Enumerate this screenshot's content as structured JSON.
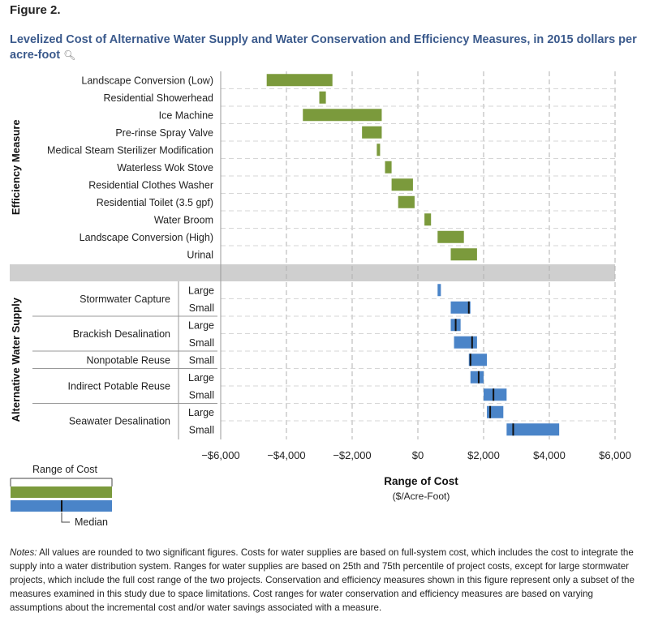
{
  "figure_label": "Figure 2.",
  "figure_title": "Levelized Cost of Alternative Water Supply and Water Conservation and Efficiency Measures, in 2015 dollars per acre-foot",
  "notes_label": "Notes:",
  "notes_text": "All values are rounded to two significant figures. Costs for water supplies are based on full-system cost, which includes the cost to integrate the supply into a water distribution system. Ranges for water supplies are based on 25th and 75th percentile of project costs, except for large stormwater projects, which include the full cost range of the two projects. Conservation and efficiency measures shown in this figure represent only a subset of the measures examined in this study due to space limitations. Cost ranges for water conservation and efficiency measures are based on varying assumptions about the incremental cost and/or water savings associated with a measure.",
  "legend": {
    "title": "Range of Cost",
    "median_label": "Median"
  },
  "colors": {
    "efficiency": "#7b9a3c",
    "supply": "#4a84c8",
    "median": "#111111",
    "separator": "#cfcfcf",
    "grid": "#b0b0b0",
    "title": "#3b5a8c"
  },
  "chart_data": {
    "type": "bar",
    "orientation": "horizontal floating range",
    "xlabel": "Range of Cost",
    "xlabel_units": "($/Acre-Foot)",
    "xlim": [
      -6000,
      6000
    ],
    "xticks": [
      -6000,
      -4000,
      -2000,
      0,
      2000,
      4000,
      6000
    ],
    "xtick_labels": [
      "−$6,000",
      "−$4,000",
      "−$2,000",
      "$0",
      "$2,000",
      "$4,000",
      "$6,000"
    ],
    "grid": "vertical dashed",
    "groups": [
      {
        "name": "Efficiency Measure",
        "color_key": "efficiency",
        "rows": [
          {
            "label": "Landscape Conversion (Low)",
            "low": -4600,
            "high": -2600
          },
          {
            "label": "Residential Showerhead",
            "low": -3000,
            "high": -2800
          },
          {
            "label": "Ice Machine",
            "low": -3500,
            "high": -1100
          },
          {
            "label": "Pre-rinse Spray Valve",
            "low": -1700,
            "high": -1100
          },
          {
            "label": "Medical Steam Sterilizer Modification",
            "low": -1250,
            "high": -1150
          },
          {
            "label": "Waterless Wok Stove",
            "low": -1000,
            "high": -800
          },
          {
            "label": "Residential Clothes Washer",
            "low": -800,
            "high": -150
          },
          {
            "label": "Residential Toilet (3.5 gpf)",
            "low": -600,
            "high": -100
          },
          {
            "label": "Water Broom",
            "low": 200,
            "high": 400
          },
          {
            "label": "Landscape Conversion (High)",
            "low": 600,
            "high": 1400
          },
          {
            "label": "Urinal",
            "low": 1000,
            "high": 1800
          }
        ]
      },
      {
        "name": "Alternative Water Supply",
        "color_key": "supply",
        "rows": [
          {
            "label": "Stormwater Capture",
            "size": "Large",
            "low": 600,
            "high": 700
          },
          {
            "label": "Stormwater Capture",
            "size": "Small",
            "low": 1000,
            "high": 1600,
            "median": 1550
          },
          {
            "label": "Brackish Desalination",
            "size": "Large",
            "low": 1000,
            "high": 1300,
            "median": 1150
          },
          {
            "label": "Brackish Desalination",
            "size": "Small",
            "low": 1100,
            "high": 1800,
            "median": 1650
          },
          {
            "label": "Nonpotable Reuse",
            "size": "Small",
            "low": 1550,
            "high": 2100,
            "median": 1600
          },
          {
            "label": "Indirect Potable Reuse",
            "size": "Large",
            "low": 1600,
            "high": 2000,
            "median": 1850
          },
          {
            "label": "Indirect Potable Reuse",
            "size": "Small",
            "low": 2000,
            "high": 2700,
            "median": 2300
          },
          {
            "label": "Seawater Desalination",
            "size": "Large",
            "low": 2100,
            "high": 2600,
            "median": 2200
          },
          {
            "label": "Seawater Desalination",
            "size": "Small",
            "low": 2700,
            "high": 4300,
            "median": 2900
          }
        ]
      }
    ]
  }
}
